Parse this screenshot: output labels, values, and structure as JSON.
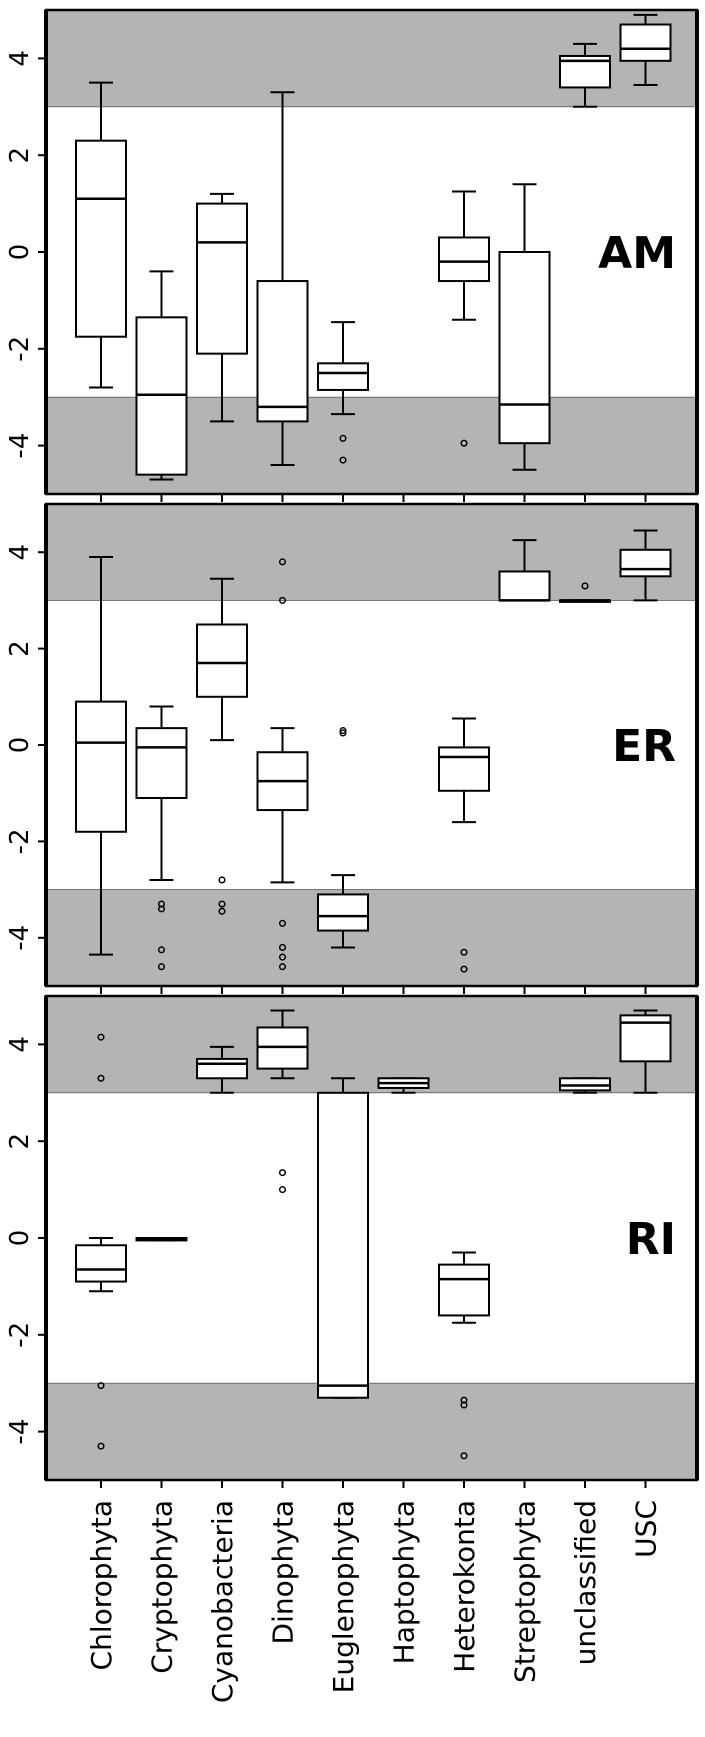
{
  "chart_data": {
    "type": "box",
    "categories": [
      "Chlorophyta",
      "Cryptophyta",
      "Cyanobacteria",
      "Dinophyta",
      "Euglenophyta",
      "Haptophyta",
      "Heterokonta",
      "Streptophyta",
      "unclassified",
      "USC"
    ],
    "ylim": [
      -5,
      5
    ],
    "yticks": [
      -4,
      -2,
      0,
      2,
      4
    ],
    "ytick_labels": [
      "-4",
      "-2",
      "0",
      "2",
      "4"
    ],
    "shaded_bands": [
      [
        -5,
        -3
      ],
      [
        3,
        5
      ]
    ],
    "colors": {
      "band": "#b4b4b4",
      "box": "#000000",
      "background": "#ffffff"
    },
    "panels": [
      {
        "label": "AM",
        "boxes": [
          {
            "category": "Chlorophyta",
            "whisker_low": -2.8,
            "q1": -1.75,
            "median": 1.1,
            "q3": 2.3,
            "whisker_high": 3.5,
            "outliers": []
          },
          {
            "category": "Cryptophyta",
            "whisker_low": -4.7,
            "q1": -4.6,
            "median": -2.95,
            "q3": -1.35,
            "whisker_high": -0.4,
            "outliers": []
          },
          {
            "category": "Cyanobacteria",
            "whisker_low": -3.5,
            "q1": -2.1,
            "median": 0.2,
            "q3": 1.0,
            "whisker_high": 1.2,
            "outliers": []
          },
          {
            "category": "Dinophyta",
            "whisker_low": -4.4,
            "q1": -3.5,
            "median": -3.2,
            "q3": -0.6,
            "whisker_high": 3.3,
            "outliers": []
          },
          {
            "category": "Euglenophyta",
            "whisker_low": -3.35,
            "q1": -2.85,
            "median": -2.5,
            "q3": -2.3,
            "whisker_high": -1.45,
            "outliers": [
              -3.85,
              -4.3
            ]
          },
          {
            "category": "Heterokonta",
            "whisker_low": -1.4,
            "q1": -0.6,
            "median": -0.2,
            "q3": 0.3,
            "whisker_high": 1.25,
            "outliers": [
              -3.95
            ]
          },
          {
            "category": "Streptophyta",
            "whisker_low": -4.5,
            "q1": -3.95,
            "median": -3.15,
            "q3": 0.0,
            "whisker_high": 1.4,
            "outliers": []
          },
          {
            "category": "unclassified",
            "whisker_low": 3.0,
            "q1": 3.4,
            "median": 3.95,
            "q3": 4.05,
            "whisker_high": 4.3,
            "outliers": []
          },
          {
            "category": "USC",
            "whisker_low": 3.45,
            "q1": 3.95,
            "median": 4.2,
            "q3": 4.7,
            "whisker_high": 4.9,
            "outliers": []
          }
        ]
      },
      {
        "label": "ER",
        "boxes": [
          {
            "category": "Chlorophyta",
            "whisker_low": -4.35,
            "q1": -1.8,
            "median": 0.05,
            "q3": 0.9,
            "whisker_high": 3.9,
            "outliers": []
          },
          {
            "category": "Cryptophyta",
            "whisker_low": -2.8,
            "q1": -1.1,
            "median": -0.05,
            "q3": 0.35,
            "whisker_high": 0.8,
            "outliers": [
              -3.3,
              -3.4,
              -4.25,
              -4.6
            ]
          },
          {
            "category": "Cyanobacteria",
            "whisker_low": 0.1,
            "q1": 1.0,
            "median": 1.7,
            "q3": 2.5,
            "whisker_high": 3.45,
            "outliers": [
              -2.8,
              -3.3,
              -3.45
            ]
          },
          {
            "category": "Dinophyta",
            "whisker_low": -2.85,
            "q1": -1.35,
            "median": -0.75,
            "q3": -0.15,
            "whisker_high": 0.35,
            "outliers": [
              3.8,
              3.0,
              -3.7,
              -4.2,
              -4.4,
              -4.6
            ]
          },
          {
            "category": "Euglenophyta",
            "whisker_low": -4.2,
            "q1": -3.85,
            "median": -3.55,
            "q3": -3.1,
            "whisker_high": -2.7,
            "outliers": [
              0.3,
              0.25
            ]
          },
          {
            "category": "Heterokonta",
            "whisker_low": -1.6,
            "q1": -0.95,
            "median": -0.25,
            "q3": -0.05,
            "whisker_high": 0.55,
            "outliers": [
              -4.3,
              -4.65
            ]
          },
          {
            "category": "Streptophyta",
            "whisker_low": 3.0,
            "q1": 3.0,
            "median": 3.0,
            "q3": 3.6,
            "whisker_high": 4.25,
            "outliers": []
          },
          {
            "category": "unclassified",
            "whisker_low": 3.0,
            "q1": 3.0,
            "median": 3.0,
            "q3": 3.0,
            "whisker_high": 3.0,
            "outliers": [
              3.3
            ]
          },
          {
            "category": "USC",
            "whisker_low": 3.0,
            "q1": 3.5,
            "median": 3.65,
            "q3": 4.05,
            "whisker_high": 4.45,
            "outliers": []
          }
        ]
      },
      {
        "label": "RI",
        "boxes": [
          {
            "category": "Chlorophyta",
            "whisker_low": -1.1,
            "q1": -0.9,
            "median": -0.65,
            "q3": -0.15,
            "whisker_high": 0.0,
            "outliers": [
              4.15,
              3.3,
              -3.05,
              -4.3
            ]
          },
          {
            "category": "Cryptophyta",
            "whisker_low": -0.05,
            "q1": -0.05,
            "median": -0.03,
            "q3": 0.0,
            "whisker_high": 0.0,
            "outliers": []
          },
          {
            "category": "Cyanobacteria",
            "whisker_low": 3.0,
            "q1": 3.3,
            "median": 3.6,
            "q3": 3.7,
            "whisker_high": 3.95,
            "outliers": []
          },
          {
            "category": "Dinophyta",
            "whisker_low": 3.3,
            "q1": 3.5,
            "median": 3.95,
            "q3": 4.35,
            "whisker_high": 4.7,
            "outliers": [
              1.35,
              1.0
            ]
          },
          {
            "category": "Euglenophyta",
            "whisker_low": -3.3,
            "q1": -3.3,
            "median": -3.05,
            "q3": 3.0,
            "whisker_high": 3.3,
            "outliers": []
          },
          {
            "category": "Haptophyta",
            "whisker_low": 3.0,
            "q1": 3.1,
            "median": 3.2,
            "q3": 3.3,
            "whisker_high": 3.3,
            "outliers": []
          },
          {
            "category": "Heterokonta",
            "whisker_low": -1.75,
            "q1": -1.6,
            "median": -0.85,
            "q3": -0.55,
            "whisker_high": -0.3,
            "outliers": [
              -3.35,
              -3.45,
              -4.5
            ]
          },
          {
            "category": "unclassified",
            "whisker_low": 3.0,
            "q1": 3.05,
            "median": 3.15,
            "q3": 3.3,
            "whisker_high": 3.3,
            "outliers": []
          },
          {
            "category": "USC",
            "whisker_low": 3.0,
            "q1": 3.65,
            "median": 4.45,
            "q3": 4.6,
            "whisker_high": 4.7,
            "outliers": []
          }
        ]
      }
    ]
  }
}
